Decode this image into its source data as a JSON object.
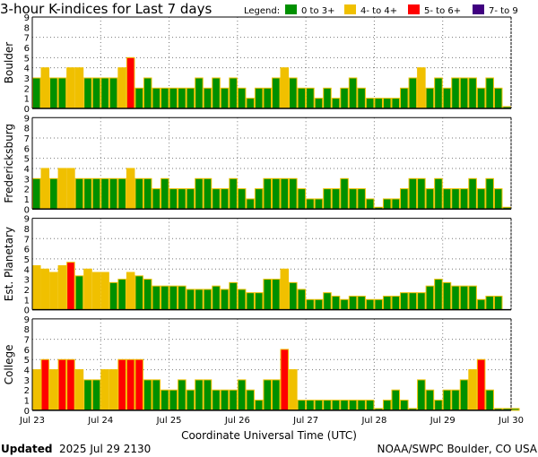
{
  "title": "3-hour K-indices for Last 7 days",
  "legend": {
    "label": "Legend:",
    "items": [
      {
        "label": "0 to 3+",
        "color": "#009000"
      },
      {
        "label": "4- to 4+",
        "color": "#f0c000"
      },
      {
        "label": "5- to 6+",
        "color": "#ff0000"
      },
      {
        "label": "7- to 9",
        "color": "#400080"
      }
    ]
  },
  "footer": {
    "updated_label": "Updated",
    "updated_value": "2025 Jul 29 2130",
    "credit": "NOAA/SWPC Boulder, CO USA"
  },
  "chart_data": {
    "type": "bar",
    "title": "3-hour K-indices for Last 7 days",
    "xlabel": "Coordinate Universal Time (UTC)",
    "x_ticks": [
      "Jul 23",
      "Jul 24",
      "Jul 25",
      "Jul 26",
      "Jul 27",
      "Jul 28",
      "Jul 29",
      "Jul 30"
    ],
    "y_ticks": [
      "0",
      "1",
      "2",
      "3",
      "4",
      "5",
      "6",
      "7",
      "8",
      "9"
    ],
    "ylim": [
      0,
      9
    ],
    "interval_hours": 3,
    "grid": {
      "horizontal_at": [
        4,
        5,
        7
      ],
      "vertical": "daily",
      "style": "dotted"
    },
    "panels": [
      {
        "name": "Boulder",
        "values": [
          3,
          4,
          3,
          3,
          4,
          4,
          3,
          3,
          3,
          3,
          4,
          5,
          2,
          3,
          2,
          2,
          2,
          2,
          2,
          3,
          2,
          3,
          2,
          3,
          2,
          1,
          2,
          2,
          3,
          4,
          3,
          2,
          2,
          1,
          2,
          1,
          2,
          3,
          2,
          1,
          1,
          1,
          1,
          2,
          3,
          4,
          2,
          3,
          2,
          3,
          3,
          3,
          2,
          3,
          2,
          0
        ]
      },
      {
        "name": "Fredericksburg",
        "values": [
          3,
          4,
          3,
          4,
          4,
          3,
          3,
          3,
          3,
          3,
          3,
          4,
          3,
          3,
          2,
          3,
          2,
          2,
          2,
          3,
          3,
          2,
          2,
          3,
          2,
          1,
          2,
          3,
          3,
          3,
          3,
          2,
          1,
          1,
          2,
          2,
          3,
          2,
          2,
          1,
          0,
          1,
          1,
          2,
          3,
          3,
          2,
          3,
          2,
          2,
          2,
          3,
          2,
          3,
          2,
          0
        ]
      },
      {
        "name": "Est. Planetary",
        "values": [
          4.33,
          4,
          3.67,
          4.33,
          4.67,
          3.33,
          4,
          3.67,
          3.67,
          2.67,
          3,
          3.67,
          3.33,
          3,
          2.33,
          2.33,
          2.33,
          2.33,
          2,
          2,
          2,
          2.33,
          2,
          2.67,
          2,
          1.67,
          1.67,
          3,
          3,
          4,
          2.67,
          2,
          1,
          1,
          1.67,
          1.33,
          1,
          1.33,
          1.33,
          1,
          1,
          1.33,
          1.33,
          1.67,
          1.67,
          1.67,
          2.33,
          3,
          2.67,
          2.33,
          2.33,
          2.33,
          1,
          1.33,
          1.33,
          null
        ]
      },
      {
        "name": "College",
        "values": [
          4,
          5,
          4,
          5,
          5,
          4,
          3,
          3,
          4,
          4,
          5,
          5,
          5,
          3,
          3,
          2,
          2,
          3,
          2,
          3,
          3,
          2,
          2,
          2,
          3,
          2,
          1,
          3,
          3,
          6,
          4,
          1,
          1,
          1,
          1,
          1,
          1,
          1,
          1,
          1,
          0,
          1,
          2,
          1,
          0,
          3,
          2,
          1,
          2,
          2,
          3,
          4,
          5,
          2,
          0,
          0,
          0
        ]
      }
    ]
  }
}
